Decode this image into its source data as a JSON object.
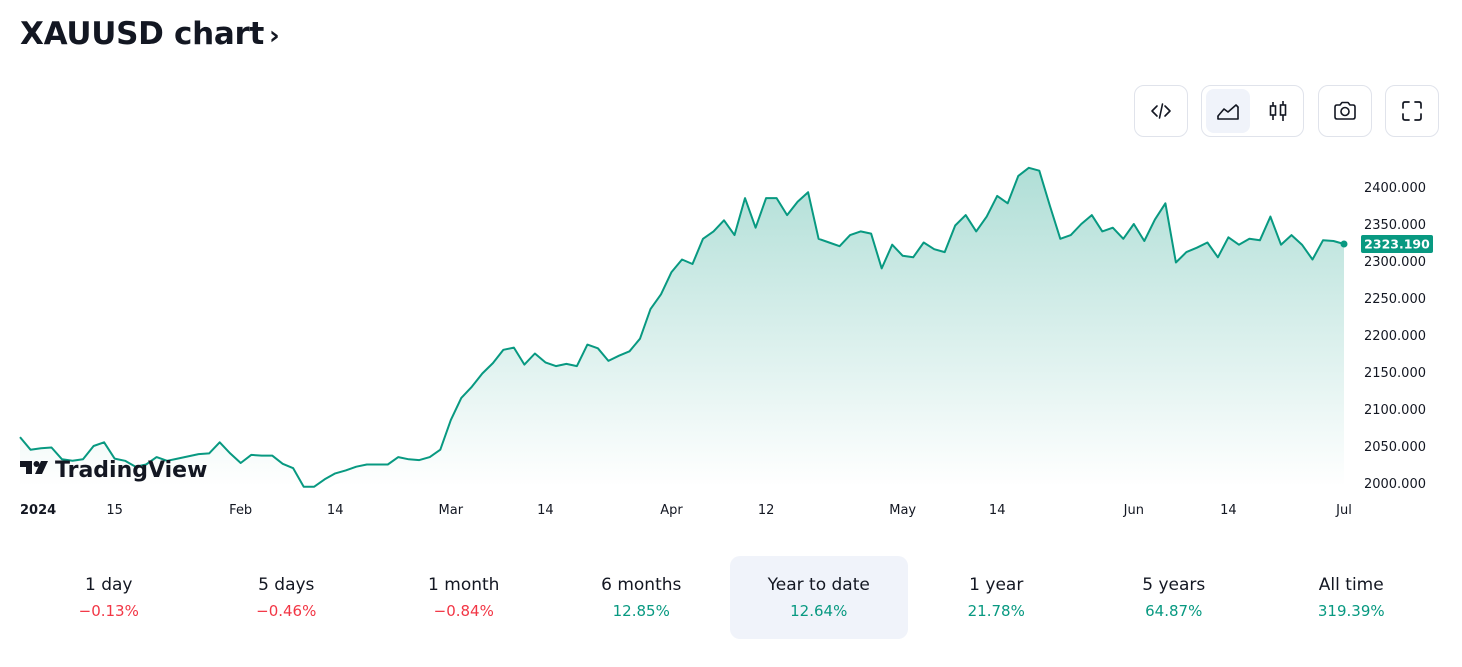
{
  "header": {
    "title": "XAUUSD chart",
    "chevron": "›"
  },
  "toolbar": {
    "embed_icon": "code-icon",
    "line_icon": "area-chart-icon",
    "candles_icon": "candlestick-icon",
    "snapshot_icon": "camera-icon",
    "fullscreen_icon": "fullscreen-icon"
  },
  "chart_data": {
    "type": "area",
    "symbol": "XAUUSD",
    "watermark": "TradingView",
    "last_value_label": "2323.190",
    "colors": {
      "line": "#089981",
      "fill_top": "#089981",
      "fill_bottom": "#ffffff",
      "label_bg": "#089981"
    },
    "grid": false,
    "ylim": [
      1985,
      2440
    ],
    "y_ticks": [
      "2000.000",
      "2050.000",
      "2100.000",
      "2150.000",
      "2200.000",
      "2250.000",
      "2300.000",
      "2350.000",
      "2400.000"
    ],
    "y_tick_values": [
      2000,
      2050,
      2100,
      2150,
      2200,
      2250,
      2300,
      2350,
      2400
    ],
    "x_ticks": [
      {
        "label": "2024",
        "index": 0,
        "bold": true
      },
      {
        "label": "15",
        "index": 9
      },
      {
        "label": "Feb",
        "index": 21
      },
      {
        "label": "14",
        "index": 30
      },
      {
        "label": "Mar",
        "index": 41
      },
      {
        "label": "14",
        "index": 50
      },
      {
        "label": "Apr",
        "index": 62
      },
      {
        "label": "12",
        "index": 71
      },
      {
        "label": "May",
        "index": 84
      },
      {
        "label": "14",
        "index": 93
      },
      {
        "label": "Jun",
        "index": 106
      },
      {
        "label": "14",
        "index": 115
      },
      {
        "label": "Jul",
        "index": 126
      }
    ],
    "series": [
      {
        "values": [
          2062,
          2045,
          2047,
          2048,
          2032,
          2030,
          2032,
          2050,
          2055,
          2033,
          2030,
          2022,
          2025,
          2035,
          2030,
          2033,
          2036,
          2039,
          2040,
          2055,
          2040,
          2027,
          2038,
          2037,
          2037,
          2026,
          2020,
          1995,
          1995,
          2005,
          2013,
          2017,
          2022,
          2025,
          2025,
          2025,
          2035,
          2032,
          2031,
          2035,
          2045,
          2085,
          2115,
          2130,
          2148,
          2162,
          2180,
          2183,
          2160,
          2175,
          2163,
          2158,
          2161,
          2158,
          2187,
          2182,
          2165,
          2172,
          2178,
          2195,
          2235,
          2255,
          2285,
          2302,
          2296,
          2330,
          2340,
          2355,
          2335,
          2385,
          2345,
          2385,
          2385,
          2362,
          2380,
          2393,
          2330,
          2325,
          2320,
          2335,
          2340,
          2337,
          2290,
          2322,
          2307,
          2305,
          2325,
          2316,
          2312,
          2348,
          2362,
          2340,
          2360,
          2388,
          2378,
          2415,
          2426,
          2422,
          2375,
          2330,
          2335,
          2350,
          2362,
          2340,
          2345,
          2330,
          2350,
          2327,
          2356,
          2378,
          2298,
          2312,
          2318,
          2325,
          2305,
          2332,
          2322,
          2330,
          2328,
          2360,
          2322,
          2335,
          2322,
          2302,
          2328,
          2327,
          2323
        ]
      }
    ]
  },
  "periods": [
    {
      "label": "1 day",
      "value": "−0.13%",
      "tone": "neg",
      "active": false
    },
    {
      "label": "5 days",
      "value": "−0.46%",
      "tone": "neg",
      "active": false
    },
    {
      "label": "1 month",
      "value": "−0.84%",
      "tone": "neg",
      "active": false
    },
    {
      "label": "6 months",
      "value": "12.85%",
      "tone": "pos",
      "active": false
    },
    {
      "label": "Year to date",
      "value": "12.64%",
      "tone": "pos",
      "active": true
    },
    {
      "label": "1 year",
      "value": "21.78%",
      "tone": "pos",
      "active": false
    },
    {
      "label": "5 years",
      "value": "64.87%",
      "tone": "pos",
      "active": false
    },
    {
      "label": "All time",
      "value": "319.39%",
      "tone": "pos",
      "active": false
    }
  ]
}
